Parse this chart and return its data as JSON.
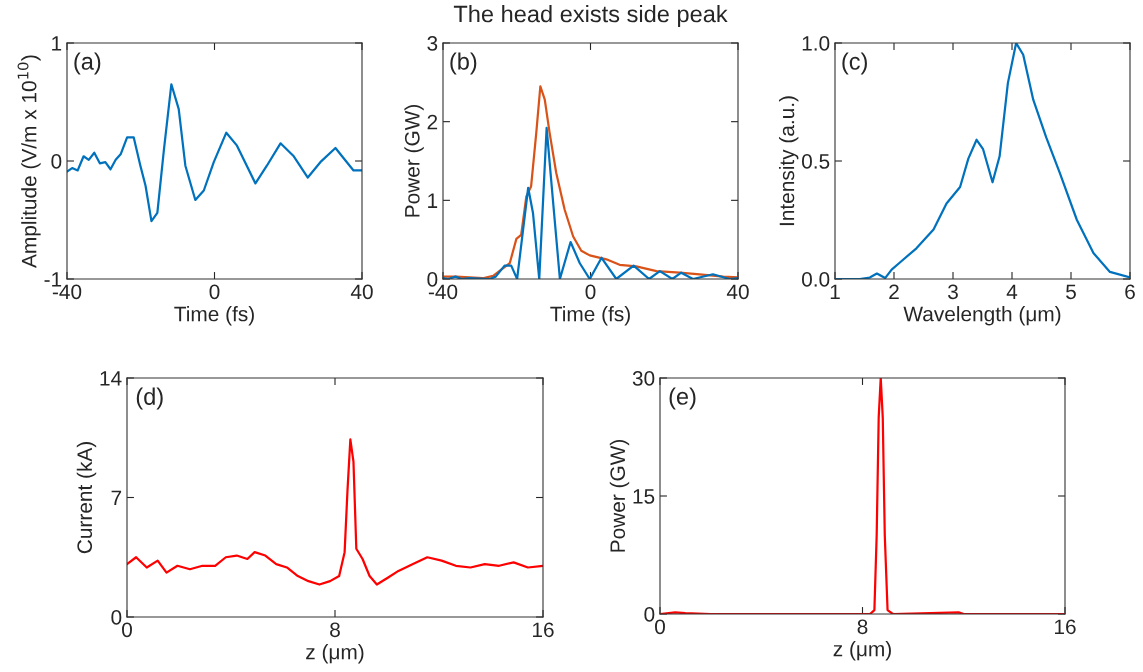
{
  "chart_data": [
    {
      "type": "line",
      "xlabel": "Time (fs)",
      "ylabel": "Amplitude (V/m x 10$^{10}$)",
      "annotations": [
        "(a)"
      ],
      "xlim": [
        -40,
        40
      ],
      "ylim": [
        -1,
        1
      ],
      "xticks": [
        -40,
        0,
        40
      ],
      "yticks": [
        -1,
        0,
        1
      ],
      "series": [
        {
          "color": "#0072bd",
          "x": [
            -40,
            -38.6,
            -37.1,
            -35.5,
            -34.1,
            -32.6,
            -31.1,
            -29.6,
            -28.2,
            -26.8,
            -25.4,
            -23.7,
            -21.9,
            -20.1,
            -18.7,
            -17.1,
            -15.5,
            -13.7,
            -11.7,
            -9.7,
            -7.9,
            -5.2,
            -2.9,
            -0.2,
            3.2,
            6.1,
            11.1,
            14.2,
            17.9,
            21.5,
            25.3,
            28.7,
            32.8,
            35.9,
            37.7,
            40
          ],
          "values": [
            -0.09,
            -0.06,
            -0.08,
            0.04,
            0.01,
            0.07,
            -0.02,
            -0.01,
            -0.07,
            0.01,
            0.06,
            0.2,
            0.2,
            -0.04,
            -0.21,
            -0.51,
            -0.44,
            0.1,
            0.65,
            0.44,
            -0.04,
            -0.33,
            -0.25,
            -0.01,
            0.24,
            0.13,
            -0.19,
            -0.04,
            0.15,
            0.04,
            -0.14,
            -0.01,
            0.11,
            -0.01,
            -0.08,
            -0.08
          ]
        }
      ]
    },
    {
      "type": "line",
      "title": "The head exists side peak",
      "xlabel": "Time (fs)",
      "ylabel": "Power (GW)",
      "annotations": [
        "(b)"
      ],
      "xlim": [
        -40,
        40
      ],
      "ylim": [
        0,
        3
      ],
      "xticks": [
        -40,
        0,
        40
      ],
      "yticks": [
        0,
        1,
        2,
        3
      ],
      "series": [
        {
          "color": "#d95319",
          "x": [
            -40,
            -36.4,
            -32.8,
            -29.2,
            -26.4,
            -24.2,
            -21.9,
            -20.1,
            -18.8,
            -17.4,
            -16.1,
            -14.7,
            -13.6,
            -12.4,
            -11.1,
            -9.3,
            -7,
            -4.7,
            -2.5,
            -0.2,
            4.3,
            7.9,
            12.4,
            17.9,
            24.2,
            29.6,
            36,
            40
          ],
          "values": [
            0.03,
            0.03,
            0.02,
            0.01,
            0.04,
            0.12,
            0.2,
            0.51,
            0.56,
            1.05,
            1.18,
            1.86,
            2.45,
            2.28,
            1.86,
            1.35,
            0.88,
            0.54,
            0.36,
            0.3,
            0.25,
            0.18,
            0.16,
            0.1,
            0.08,
            0.06,
            0.03,
            0.02
          ]
        },
        {
          "color": "#0072bd",
          "x": [
            -40,
            -38.6,
            -36.6,
            -35,
            -32.8,
            -27.3,
            -25.7,
            -23.3,
            -21.5,
            -19.9,
            -16.9,
            -15.6,
            -13.9,
            -11.9,
            -10.2,
            -8.3,
            -5.4,
            -2.9,
            -0.2,
            3,
            7,
            11.7,
            15.9,
            18.8,
            22.2,
            24.6,
            27.8,
            33.2,
            37.7,
            40
          ],
          "values": [
            0.01,
            0,
            0.03,
            0,
            0.01,
            0,
            0.03,
            0.17,
            0.17,
            0,
            1.16,
            0.84,
            0,
            1.92,
            1.01,
            0,
            0.47,
            0.2,
            0,
            0.27,
            0,
            0.17,
            0,
            0.1,
            0,
            0.08,
            0,
            0.06,
            0,
            0.01
          ]
        }
      ]
    },
    {
      "type": "line",
      "xlabel": "Wavelength (μm)",
      "ylabel": "Intensity (a.u.)",
      "annotations": [
        "(c)"
      ],
      "xlim": [
        1,
        6
      ],
      "ylim": [
        0,
        1
      ],
      "xticks": [
        1,
        2,
        3,
        4,
        5,
        6
      ],
      "yticks": [
        {
          "value": 0,
          "label": "0.0"
        },
        {
          "value": 0.5,
          "label": "0.5"
        },
        {
          "value": 1,
          "label": "1.0"
        }
      ],
      "series": [
        {
          "color": "#0072bd",
          "x": [
            1,
            1.42,
            1.59,
            1.71,
            1.85,
            1.96,
            2.1,
            2.38,
            2.67,
            2.89,
            3.12,
            3.26,
            3.4,
            3.51,
            3.67,
            3.79,
            3.93,
            4.07,
            4.19,
            4.36,
            4.58,
            4.81,
            5.1,
            5.38,
            5.66,
            6
          ],
          "values": [
            0,
            0,
            0.006,
            0.023,
            0.004,
            0.04,
            0.07,
            0.13,
            0.21,
            0.32,
            0.39,
            0.51,
            0.59,
            0.55,
            0.41,
            0.52,
            0.83,
            1.0,
            0.95,
            0.76,
            0.6,
            0.45,
            0.25,
            0.11,
            0.03,
            0.007
          ]
        }
      ]
    },
    {
      "type": "line",
      "xlabel": "z (μm)",
      "ylabel": "Current (kA)",
      "annotations": [
        "(d)"
      ],
      "xlim": [
        0,
        16
      ],
      "ylim": [
        0,
        14
      ],
      "xticks": [
        0,
        8,
        16
      ],
      "yticks": [
        0,
        7,
        14
      ],
      "series": [
        {
          "color": "#ff0000",
          "x": [
            0,
            0.35,
            0.76,
            1.18,
            1.52,
            1.94,
            2.42,
            2.9,
            3.39,
            3.8,
            4.22,
            4.63,
            4.91,
            5.32,
            5.74,
            6.15,
            6.57,
            6.98,
            7.4,
            7.81,
            8.16,
            8.37,
            8.48,
            8.59,
            8.71,
            8.82,
            9.06,
            9.33,
            9.61,
            10.03,
            10.44,
            11.0,
            11.55,
            12.1,
            12.65,
            13.21,
            13.76,
            14.31,
            14.87,
            15.42,
            16
          ],
          "values": [
            3.1,
            3.5,
            2.9,
            3.3,
            2.6,
            3.0,
            2.8,
            3.0,
            3.0,
            3.5,
            3.6,
            3.4,
            3.8,
            3.6,
            3.1,
            2.9,
            2.4,
            2.1,
            1.9,
            2.1,
            2.4,
            3.8,
            7.4,
            10.4,
            9.1,
            4.0,
            3.4,
            2.4,
            1.9,
            2.3,
            2.7,
            3.1,
            3.5,
            3.3,
            3.0,
            2.9,
            3.1,
            3.0,
            3.2,
            2.9,
            3.0
          ]
        }
      ]
    },
    {
      "type": "line",
      "xlabel": "z (μm)",
      "ylabel": "Power (GW)",
      "annotations": [
        "(e)"
      ],
      "xlim": [
        0,
        16
      ],
      "ylim": [
        0,
        30
      ],
      "xticks": [
        0,
        8,
        16
      ],
      "yticks": [
        0,
        15,
        30
      ],
      "series": [
        {
          "color": "#ff0000",
          "x": [
            0,
            0.6,
            1.0,
            2,
            5,
            8.3,
            8.47,
            8.56,
            8.64,
            8.72,
            8.8,
            8.88,
            8.99,
            9.2,
            11.8,
            12,
            16
          ],
          "values": [
            0,
            0.2,
            0.1,
            0,
            0,
            0,
            0.5,
            10,
            25,
            30,
            25,
            10,
            0.5,
            0,
            0.2,
            0,
            0
          ]
        }
      ]
    }
  ]
}
